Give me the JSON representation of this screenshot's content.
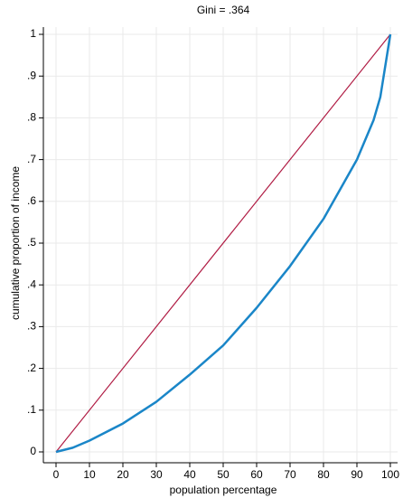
{
  "chart_data": {
    "type": "line",
    "title": "Gini = .364",
    "xlabel": "population percentage",
    "ylabel": "cumulative proportion of income",
    "xlim": [
      0,
      100
    ],
    "ylim": [
      0,
      1
    ],
    "xticks": [
      0,
      10,
      20,
      30,
      40,
      50,
      60,
      70,
      80,
      90,
      100
    ],
    "yticks": [
      0,
      {
        "value": 0.1,
        "label": ".1"
      },
      {
        "value": 0.2,
        "label": ".2"
      },
      {
        "value": 0.3,
        "label": ".3"
      },
      {
        "value": 0.4,
        "label": ".4"
      },
      {
        "value": 0.5,
        "label": ".5"
      },
      {
        "value": 0.6,
        "label": ".6"
      },
      {
        "value": 0.7,
        "label": ".7"
      },
      {
        "value": 0.8,
        "label": ".8"
      },
      {
        "value": 0.9,
        "label": ".9"
      },
      1
    ],
    "grid": true,
    "series": [
      {
        "color": "#b01c44",
        "x": [
          0,
          100
        ],
        "values": [
          0,
          1
        ]
      },
      {
        "color": "#1a86c8",
        "x": [
          0,
          5,
          10,
          20,
          30,
          40,
          50,
          60,
          70,
          80,
          90,
          95,
          97,
          98,
          100
        ],
        "values": [
          0,
          0.01,
          0.027,
          0.068,
          0.12,
          0.185,
          0.255,
          0.345,
          0.445,
          0.558,
          0.7,
          0.795,
          0.85,
          0.9,
          1
        ]
      }
    ]
  }
}
